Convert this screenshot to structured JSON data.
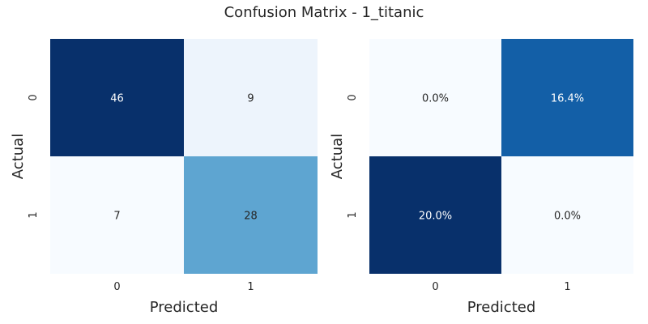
{
  "figure": {
    "title": "Confusion Matrix - 1_titanic"
  },
  "chart_data": [
    {
      "type": "heatmap",
      "title": "",
      "xlabel": "Predicted",
      "ylabel": "Actual",
      "x_ticks": [
        "0",
        "1"
      ],
      "y_ticks": [
        "0",
        "1"
      ],
      "values": [
        [
          46,
          9
        ],
        [
          7,
          28
        ]
      ],
      "cell_labels": [
        [
          "46",
          "9"
        ],
        [
          "7",
          "28"
        ]
      ],
      "colormap": "Blues",
      "vmin": 7,
      "vmax": 46,
      "colorbar": false
    },
    {
      "type": "heatmap",
      "title": "",
      "xlabel": "Predicted",
      "ylabel": "Actual",
      "x_ticks": [
        "0",
        "1"
      ],
      "y_ticks": [
        "0",
        "1"
      ],
      "values": [
        [
          0.0,
          16.4
        ],
        [
          20.0,
          0.0
        ]
      ],
      "cell_labels": [
        [
          "0.0%",
          "16.4%"
        ],
        [
          "20.0%",
          "0.0%"
        ]
      ],
      "colormap": "Blues",
      "vmin": 0.0,
      "vmax": 20.0,
      "colorbar": false
    }
  ]
}
